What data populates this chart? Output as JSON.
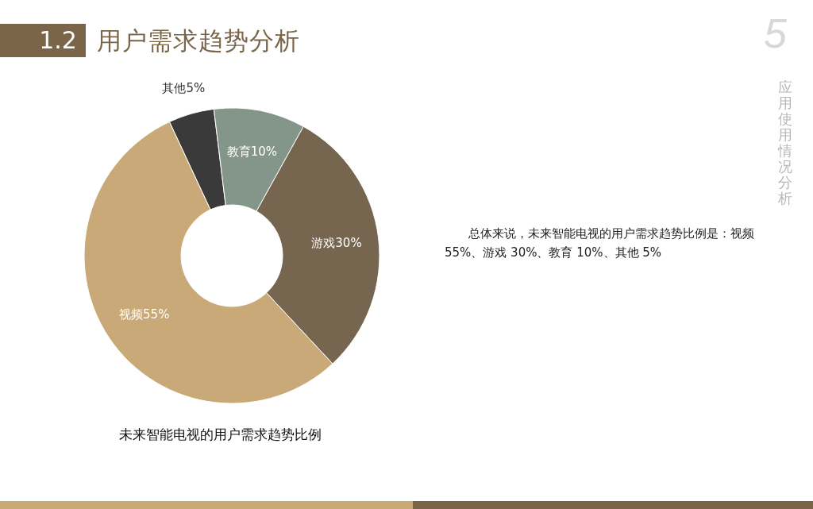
{
  "chart_data": {
    "type": "donut",
    "title": "用户需求趋势分析",
    "categories": [
      "其他",
      "教育",
      "游戏",
      "视频"
    ],
    "values": [
      5,
      10,
      30,
      55
    ],
    "colors": [
      "#3a3a3a",
      "#84968a",
      "#76664f",
      "#c9a977"
    ],
    "value_labels": [
      "5%",
      "10%",
      "30%",
      "55%"
    ],
    "annotations": [
      "1.2",
      "5",
      "应用使用情况分析",
      "总体来说，未来智能电视的用户需求趋势比例是：视频 55%、游戏 30%、教育 10%、其他 5%",
      "未来智能电视的用户需求趋势比例"
    ]
  }
}
